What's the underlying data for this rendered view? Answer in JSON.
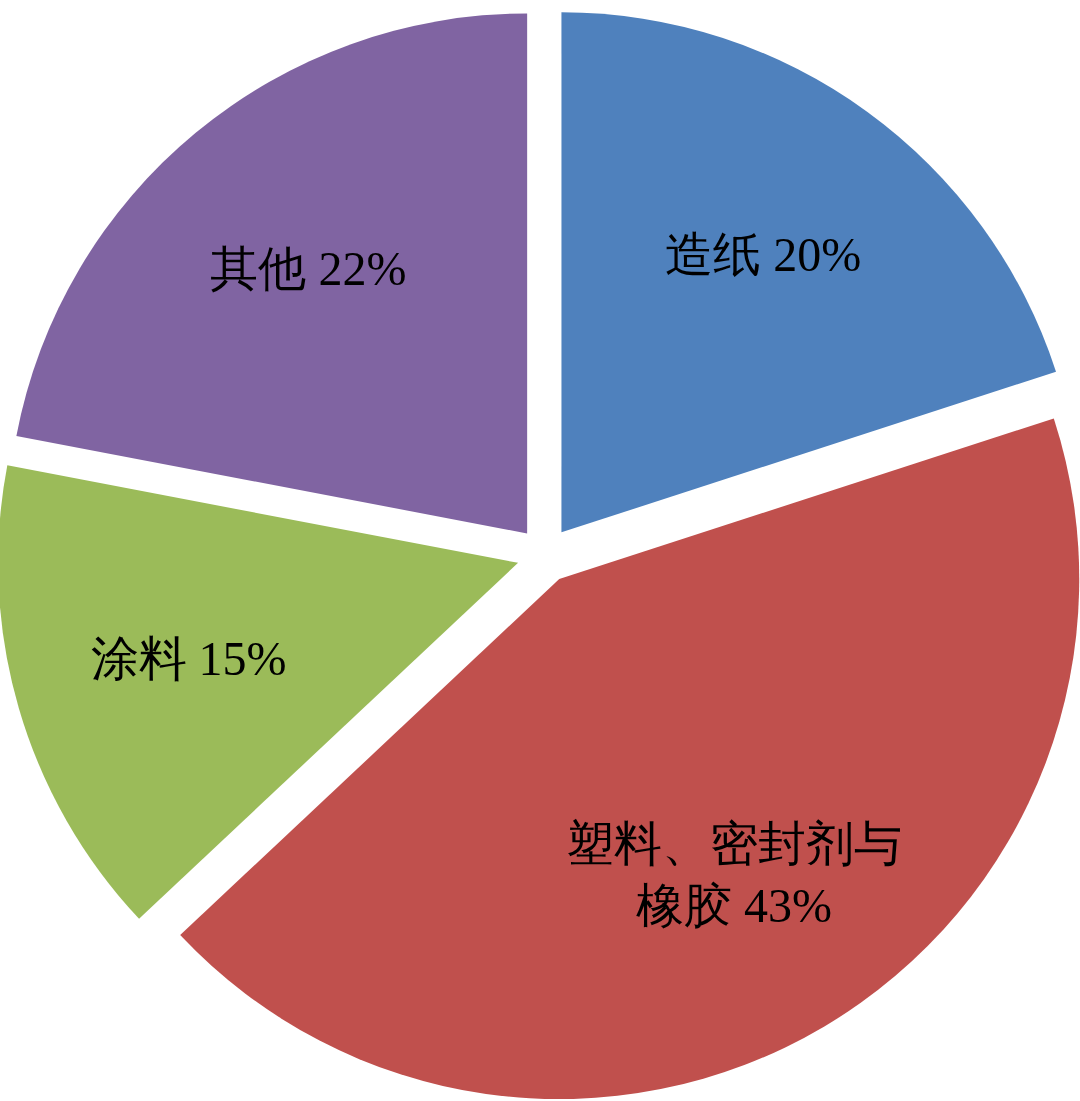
{
  "chart_data": {
    "type": "pie",
    "categories": [
      "造纸",
      "塑料、密封剂与橡胶",
      "涂料",
      "其他"
    ],
    "values": [
      20,
      43,
      15,
      22
    ],
    "value_labels": [
      "20%",
      "43%",
      "15%",
      "22%"
    ],
    "colors": [
      "#4f81bd",
      "#c0504d",
      "#9bbb59",
      "#8064a2"
    ],
    "legend": false
  }
}
